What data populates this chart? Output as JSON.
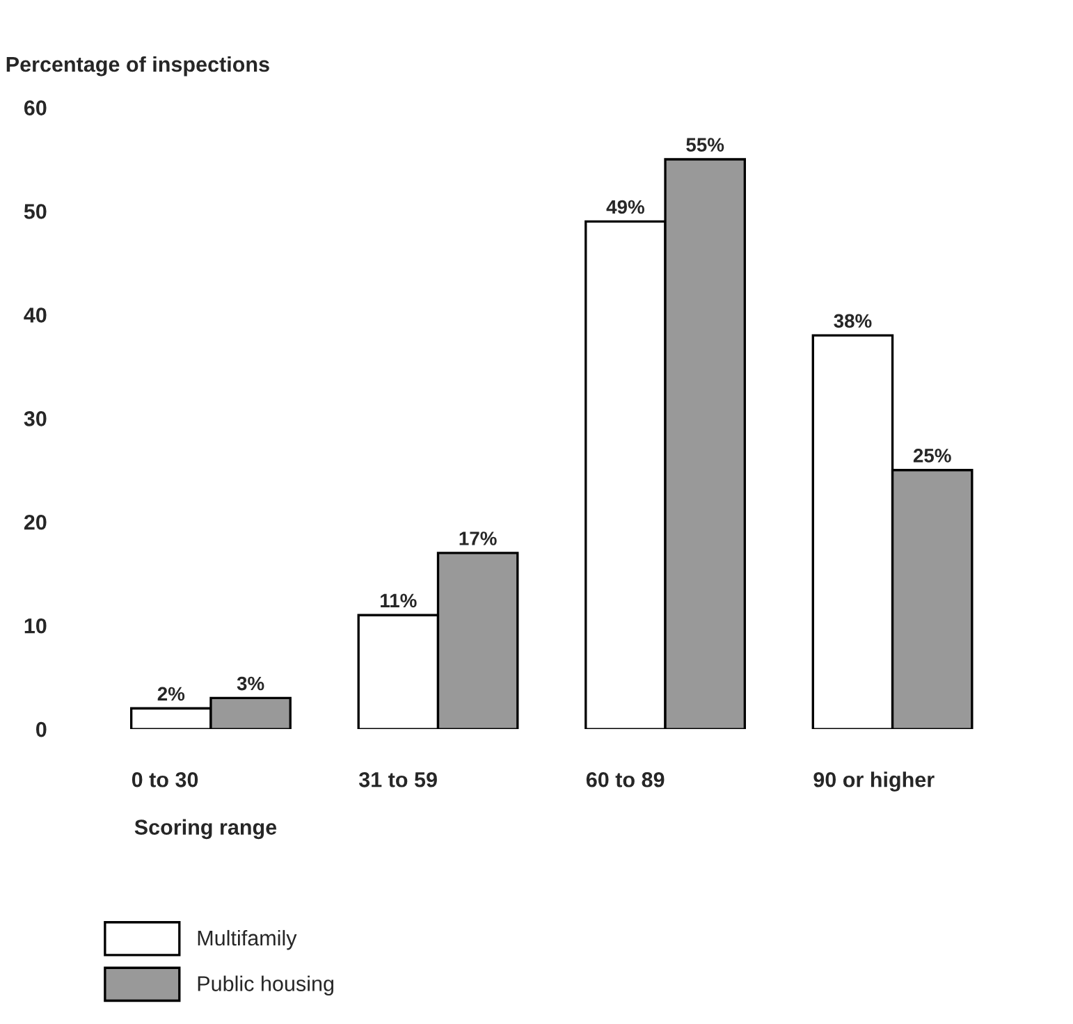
{
  "chart_data": {
    "type": "bar",
    "ylabel": "Percentage of inspections",
    "xlabel": "Scoring range",
    "categories": [
      "0 to 30",
      "31 to 59",
      "60 to 89",
      "90 or higher"
    ],
    "series": [
      {
        "name": "Multifamily",
        "color": "#ffffff",
        "values": [
          2,
          11,
          49,
          38
        ],
        "value_labels": [
          "2%",
          "11%",
          "49%",
          "38%"
        ]
      },
      {
        "name": "Public housing",
        "color": "#999999",
        "values": [
          3,
          17,
          55,
          25
        ],
        "value_labels": [
          "3%",
          "17%",
          "55%",
          "25%"
        ]
      }
    ],
    "ylim": [
      0,
      60
    ],
    "yticks": [
      0,
      10,
      20,
      30,
      40,
      50,
      60
    ],
    "grid": false,
    "legend": "bottom left"
  }
}
